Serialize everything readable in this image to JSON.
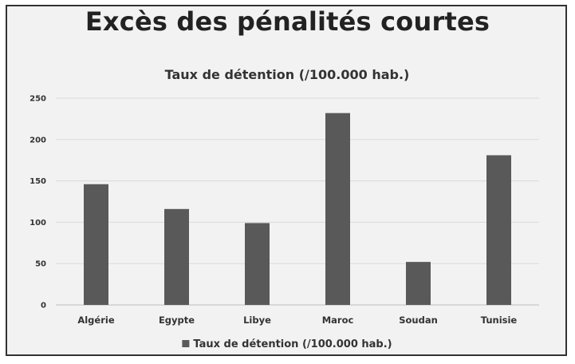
{
  "header": {
    "title": "Excès des pénalités courtes"
  },
  "chart_data": {
    "type": "bar",
    "title": "Taux de détention (/100.000 hab.)",
    "categories": [
      "Algérie",
      "Egypte",
      "Libye",
      "Maroc",
      "Soudan",
      "Tunisie"
    ],
    "series": [
      {
        "name": "Taux de détention (/100.000 hab.)",
        "values": [
          146,
          116,
          99,
          232,
          52,
          181
        ],
        "color": "#595959"
      }
    ],
    "ylim": [
      0,
      250
    ],
    "yticks": [
      "0",
      "50",
      "100",
      "150",
      "200",
      "250"
    ],
    "grid": true,
    "legend_position": "bottom"
  }
}
